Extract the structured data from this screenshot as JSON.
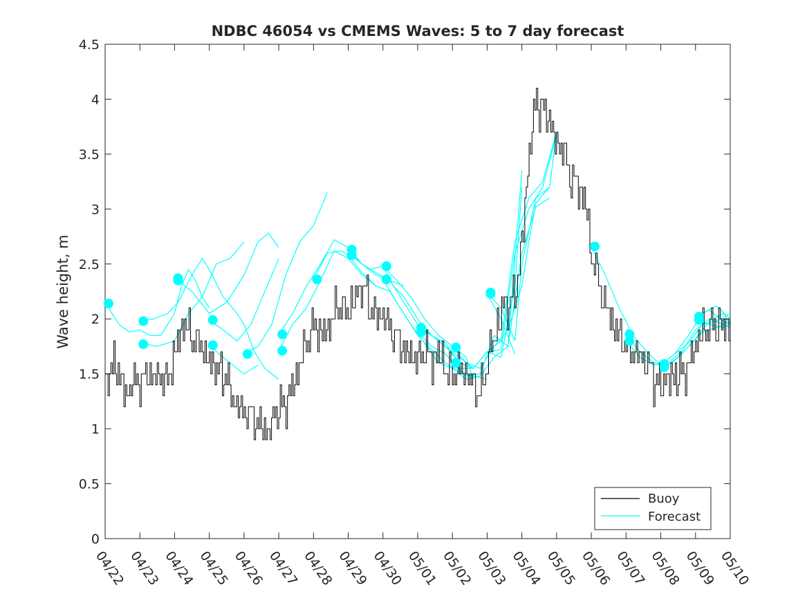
{
  "chart_data": {
    "type": "line",
    "title": "NDBC 46054 vs CMEMS Waves: 5 to 7 day forecast",
    "xlabel": "",
    "ylabel": "Wave height, m",
    "x_ticks": [
      "04/22",
      "04/23",
      "04/24",
      "04/25",
      "04/26",
      "04/27",
      "04/28",
      "04/29",
      "04/30",
      "05/01",
      "05/02",
      "05/03",
      "05/04",
      "05/05",
      "05/06",
      "05/07",
      "05/08",
      "05/09",
      "05/10"
    ],
    "xlim_days": [
      0,
      18
    ],
    "ylim": [
      0,
      4.5
    ],
    "y_ticks": [
      "0",
      "0.5",
      "1",
      "1.5",
      "2",
      "2.5",
      "3",
      "3.5",
      "4",
      "4.5"
    ],
    "grid": false,
    "legend": {
      "position": "bottom-right",
      "entries": [
        "Buoy",
        "Forecast"
      ]
    },
    "colors": {
      "buoy": "#000000",
      "forecast": "#00FFFF",
      "axis": "#262626"
    },
    "x_units": "days since 04/22",
    "buoy_anchors": [
      [
        0,
        1.45
      ],
      [
        0.15,
        1.5
      ],
      [
        0.3,
        1.6
      ],
      [
        0.5,
        1.4
      ],
      [
        0.6,
        1.25
      ],
      [
        0.8,
        1.45
      ],
      [
        1.0,
        1.4
      ],
      [
        1.2,
        1.5
      ],
      [
        1.4,
        1.45
      ],
      [
        1.6,
        1.45
      ],
      [
        1.8,
        1.45
      ],
      [
        2.0,
        1.7
      ],
      [
        2.2,
        1.95
      ],
      [
        2.4,
        1.9
      ],
      [
        2.6,
        1.8
      ],
      [
        2.8,
        1.75
      ],
      [
        2.9,
        1.65
      ],
      [
        3.0,
        1.6
      ],
      [
        3.3,
        1.5
      ],
      [
        3.5,
        1.45
      ],
      [
        3.6,
        1.3
      ],
      [
        3.8,
        1.2
      ],
      [
        4.0,
        1.15
      ],
      [
        4.3,
        1.1
      ],
      [
        4.5,
        1.02
      ],
      [
        4.6,
        1.0
      ],
      [
        4.7,
        0.95
      ],
      [
        4.8,
        1.05
      ],
      [
        5.0,
        1.2
      ],
      [
        5.2,
        1.25
      ],
      [
        5.4,
        1.35
      ],
      [
        5.6,
        1.6
      ],
      [
        5.8,
        1.8
      ],
      [
        6.0,
        1.95
      ],
      [
        6.2,
        1.85
      ],
      [
        6.4,
        1.9
      ],
      [
        6.6,
        2.05
      ],
      [
        6.8,
        2.1
      ],
      [
        7.0,
        2.05
      ],
      [
        7.2,
        2.2
      ],
      [
        7.4,
        2.3
      ],
      [
        7.6,
        2.15
      ],
      [
        7.8,
        2.05
      ],
      [
        8.0,
        2.0
      ],
      [
        8.2,
        1.95
      ],
      [
        8.4,
        1.8
      ],
      [
        8.6,
        1.7
      ],
      [
        8.8,
        1.65
      ],
      [
        9.0,
        1.6
      ],
      [
        9.2,
        1.75
      ],
      [
        9.4,
        1.6
      ],
      [
        9.6,
        1.7
      ],
      [
        9.8,
        1.55
      ],
      [
        10.0,
        1.5
      ],
      [
        10.2,
        1.55
      ],
      [
        10.4,
        1.5
      ],
      [
        10.6,
        1.4
      ],
      [
        10.8,
        1.32
      ],
      [
        11.0,
        1.6
      ],
      [
        11.2,
        1.85
      ],
      [
        11.4,
        2.05
      ],
      [
        11.6,
        2.15
      ],
      [
        11.8,
        2.2
      ],
      [
        12.0,
        2.7
      ],
      [
        12.2,
        3.5
      ],
      [
        12.4,
        4.0
      ],
      [
        12.6,
        3.9
      ],
      [
        12.8,
        3.8
      ],
      [
        13.0,
        3.6
      ],
      [
        13.2,
        3.5
      ],
      [
        13.4,
        3.3
      ],
      [
        13.6,
        3.2
      ],
      [
        13.8,
        3.1
      ],
      [
        14.0,
        2.6
      ],
      [
        14.2,
        2.35
      ],
      [
        14.4,
        2.1
      ],
      [
        14.6,
        1.95
      ],
      [
        14.8,
        1.85
      ],
      [
        15.0,
        1.75
      ],
      [
        15.2,
        1.72
      ],
      [
        15.4,
        1.65
      ],
      [
        15.6,
        1.6
      ],
      [
        15.8,
        1.45
      ],
      [
        16.0,
        1.4
      ],
      [
        16.2,
        1.45
      ],
      [
        16.4,
        1.5
      ],
      [
        16.6,
        1.5
      ],
      [
        16.8,
        1.6
      ],
      [
        17.0,
        1.75
      ],
      [
        17.2,
        1.9
      ],
      [
        17.4,
        1.95
      ],
      [
        17.6,
        1.92
      ],
      [
        17.8,
        1.95
      ],
      [
        18.0,
        1.98
      ]
    ],
    "forecast_series": [
      [
        [
          0,
          2.15
        ],
        [
          0.4,
          1.95
        ],
        [
          0.7,
          1.88
        ],
        [
          1.0,
          1.9
        ],
        [
          1.3,
          1.85
        ],
        [
          1.6,
          1.85
        ],
        [
          2.0,
          2.05
        ],
        [
          2.2,
          2.3
        ],
        [
          2.4,
          2.45
        ],
        [
          2.6,
          2.35
        ],
        [
          2.8,
          2.2
        ],
        [
          3.0,
          2.1
        ]
      ],
      [
        [
          1.0,
          1.98
        ],
        [
          1.4,
          2.0
        ],
        [
          1.8,
          2.05
        ],
        [
          2.1,
          2.15
        ],
        [
          2.5,
          2.4
        ],
        [
          2.8,
          2.55
        ],
        [
          3.0,
          2.45
        ],
        [
          3.4,
          2.2
        ],
        [
          3.8,
          2.05
        ],
        [
          4.0,
          1.95
        ],
        [
          4.3,
          1.7
        ],
        [
          4.6,
          1.55
        ],
        [
          5.0,
          1.45
        ]
      ],
      [
        [
          1.0,
          1.78
        ],
        [
          1.5,
          1.75
        ],
        [
          2.0,
          1.8
        ],
        [
          2.4,
          2.05
        ],
        [
          2.8,
          2.2
        ],
        [
          3.2,
          2.5
        ],
        [
          3.6,
          2.55
        ],
        [
          4.0,
          2.7
        ]
      ],
      [
        [
          2.0,
          2.37
        ],
        [
          2.5,
          2.25
        ],
        [
          3.0,
          2.05
        ],
        [
          3.5,
          2.15
        ],
        [
          4.0,
          2.4
        ],
        [
          4.4,
          2.7
        ],
        [
          4.7,
          2.78
        ],
        [
          5.0,
          2.65
        ]
      ],
      [
        [
          3.0,
          1.99
        ],
        [
          3.4,
          1.9
        ],
        [
          3.8,
          1.8
        ],
        [
          4.2,
          1.95
        ],
        [
          4.6,
          2.25
        ],
        [
          5.0,
          2.55
        ]
      ],
      [
        [
          3.0,
          1.76
        ],
        [
          3.4,
          1.65
        ],
        [
          3.8,
          1.55
        ],
        [
          4.0,
          1.5
        ],
        [
          4.4,
          1.58
        ]
      ],
      [
        [
          4.0,
          1.68
        ],
        [
          4.4,
          1.75
        ],
        [
          4.8,
          1.95
        ],
        [
          5.2,
          2.4
        ],
        [
          5.6,
          2.7
        ],
        [
          6.0,
          2.85
        ],
        [
          6.4,
          3.15
        ]
      ],
      [
        [
          5.0,
          1.86
        ],
        [
          5.4,
          2.05
        ],
        [
          5.8,
          2.3
        ],
        [
          6.2,
          2.5
        ],
        [
          6.6,
          2.72
        ],
        [
          7.0,
          2.65
        ],
        [
          7.4,
          2.5
        ],
        [
          7.8,
          2.42
        ],
        [
          8.2,
          2.35
        ],
        [
          8.6,
          2.3
        ]
      ],
      [
        [
          5.0,
          1.71
        ],
        [
          5.4,
          1.95
        ],
        [
          5.8,
          2.1
        ],
        [
          6.2,
          2.35
        ],
        [
          6.6,
          2.62
        ],
        [
          7.0,
          2.55
        ],
        [
          7.4,
          2.4
        ],
        [
          7.8,
          2.3
        ]
      ],
      [
        [
          6.0,
          2.36
        ],
        [
          6.4,
          2.6
        ],
        [
          6.8,
          2.62
        ],
        [
          7.2,
          2.55
        ],
        [
          7.6,
          2.45
        ],
        [
          8.0,
          2.48
        ],
        [
          8.4,
          2.35
        ],
        [
          8.8,
          2.2
        ],
        [
          9.2,
          2.0
        ],
        [
          9.6,
          1.85
        ],
        [
          10.0,
          1.75
        ],
        [
          10.4,
          1.65
        ],
        [
          10.6,
          1.45
        ]
      ],
      [
        [
          7.0,
          2.63
        ],
        [
          7.4,
          2.5
        ],
        [
          7.8,
          2.4
        ],
        [
          8.2,
          2.35
        ],
        [
          8.6,
          2.15
        ],
        [
          9.0,
          1.95
        ],
        [
          9.4,
          1.85
        ],
        [
          9.8,
          1.75
        ],
        [
          10.2,
          1.6
        ]
      ],
      [
        [
          7.0,
          2.58
        ],
        [
          7.4,
          2.42
        ],
        [
          7.8,
          2.3
        ],
        [
          8.2,
          2.25
        ],
        [
          8.6,
          2.05
        ],
        [
          9.0,
          1.85
        ],
        [
          9.4,
          1.72
        ],
        [
          9.8,
          1.6
        ],
        [
          10.2,
          1.52
        ],
        [
          10.6,
          1.48
        ],
        [
          11.0,
          1.45
        ]
      ],
      [
        [
          8.0,
          2.48
        ],
        [
          8.3,
          2.3
        ],
        [
          8.6,
          2.2
        ],
        [
          9.0,
          2.0
        ],
        [
          9.4,
          1.85
        ],
        [
          9.8,
          1.75
        ],
        [
          10.2,
          1.65
        ],
        [
          10.6,
          1.55
        ],
        [
          11.0,
          1.7
        ],
        [
          11.4,
          1.65
        ],
        [
          11.8,
          2.3
        ],
        [
          12.0,
          3.2
        ]
      ],
      [
        [
          8.0,
          2.36
        ],
        [
          8.4,
          2.15
        ],
        [
          8.8,
          1.95
        ],
        [
          9.2,
          1.78
        ],
        [
          9.6,
          1.6
        ],
        [
          10.0,
          1.55
        ],
        [
          10.4,
          1.45
        ],
        [
          10.8,
          1.48
        ],
        [
          11.2,
          1.65
        ],
        [
          11.6,
          1.75
        ],
        [
          12.0,
          3.35
        ]
      ],
      [
        [
          9.0,
          1.92
        ],
        [
          9.4,
          1.85
        ],
        [
          9.8,
          1.78
        ],
        [
          10.2,
          1.6
        ],
        [
          10.6,
          1.55
        ],
        [
          11.0,
          1.7
        ],
        [
          11.4,
          1.8
        ],
        [
          11.8,
          2.7
        ],
        [
          12.2,
          3.1
        ],
        [
          12.6,
          3.25
        ],
        [
          13.0,
          3.7
        ]
      ],
      [
        [
          9.0,
          1.88
        ],
        [
          9.4,
          1.75
        ],
        [
          9.8,
          1.68
        ],
        [
          10.2,
          1.55
        ],
        [
          10.6,
          1.55
        ],
        [
          11.0,
          1.7
        ],
        [
          11.4,
          1.72
        ],
        [
          11.8,
          2.6
        ],
        [
          12.2,
          3.0
        ],
        [
          12.6,
          3.2
        ],
        [
          13.0,
          3.68
        ]
      ],
      [
        [
          10.0,
          1.74
        ],
        [
          10.4,
          1.6
        ],
        [
          10.8,
          1.55
        ],
        [
          11.2,
          1.75
        ],
        [
          11.6,
          1.9
        ],
        [
          12.0,
          2.3
        ],
        [
          12.2,
          2.7
        ],
        [
          12.4,
          3.05
        ],
        [
          12.8,
          3.2
        ]
      ],
      [
        [
          10.0,
          1.6
        ],
        [
          10.4,
          1.48
        ],
        [
          10.8,
          1.5
        ],
        [
          11.2,
          1.85
        ],
        [
          11.6,
          1.75
        ],
        [
          12.0,
          2.6
        ],
        [
          12.4,
          3.02
        ],
        [
          12.8,
          3.1
        ]
      ],
      [
        [
          11.0,
          2.24
        ],
        [
          11.4,
          2.1
        ],
        [
          11.8,
          1.8
        ],
        [
          12.0,
          2.5
        ],
        [
          12.4,
          3.1
        ],
        [
          12.8,
          3.2
        ],
        [
          13.0,
          3.7
        ]
      ],
      [
        [
          11.0,
          2.23
        ],
        [
          11.4,
          2.0
        ],
        [
          11.8,
          1.68
        ]
      ],
      [
        [
          14.0,
          2.66
        ],
        [
          14.4,
          2.4
        ],
        [
          14.8,
          2.1
        ],
        [
          15.2,
          1.85
        ],
        [
          15.6,
          1.7
        ],
        [
          16.0,
          1.58
        ],
        [
          16.4,
          1.68
        ],
        [
          16.8,
          1.85
        ],
        [
          17.2,
          2.05
        ],
        [
          17.6,
          2.12
        ],
        [
          18.0,
          2.0
        ]
      ],
      [
        [
          15.0,
          1.86
        ],
        [
          15.4,
          1.7
        ],
        [
          15.8,
          1.6
        ],
        [
          16.2,
          1.58
        ],
        [
          16.6,
          1.68
        ],
        [
          17.0,
          1.82
        ],
        [
          17.4,
          1.98
        ],
        [
          17.8,
          2.05
        ],
        [
          18.0,
          1.95
        ]
      ],
      [
        [
          15.0,
          1.8
        ],
        [
          15.4,
          1.65
        ],
        [
          15.8,
          1.58
        ],
        [
          16.2,
          1.6
        ],
        [
          16.6,
          1.7
        ],
        [
          17.0,
          1.9
        ],
        [
          17.4,
          2.0
        ],
        [
          17.8,
          1.95
        ],
        [
          18.0,
          1.92
        ]
      ],
      [
        [
          16.0,
          1.58
        ],
        [
          16.4,
          1.68
        ],
        [
          16.8,
          1.78
        ],
        [
          17.2,
          1.95
        ],
        [
          17.6,
          1.98
        ],
        [
          18.0,
          2.05
        ]
      ],
      [
        [
          16.0,
          1.55
        ],
        [
          16.4,
          1.62
        ],
        [
          16.8,
          1.75
        ],
        [
          17.2,
          1.88
        ],
        [
          17.6,
          1.92
        ],
        [
          18.0,
          1.98
        ]
      ],
      [
        [
          17.0,
          2.02
        ],
        [
          17.4,
          2.08
        ],
        [
          17.8,
          1.98
        ],
        [
          18.0,
          1.95
        ]
      ],
      [
        [
          17.0,
          1.99
        ],
        [
          17.4,
          1.95
        ],
        [
          17.8,
          1.92
        ],
        [
          18.0,
          1.96
        ]
      ]
    ],
    "forecast_markers": [
      [
        0.1,
        2.14
      ],
      [
        1.1,
        1.98
      ],
      [
        1.1,
        1.77
      ],
      [
        2.1,
        2.37
      ],
      [
        2.1,
        2.35
      ],
      [
        3.1,
        1.99
      ],
      [
        3.1,
        1.76
      ],
      [
        4.1,
        1.68
      ],
      [
        5.1,
        1.86
      ],
      [
        5.1,
        1.71
      ],
      [
        6.1,
        2.36
      ],
      [
        7.1,
        2.63
      ],
      [
        7.1,
        2.58
      ],
      [
        8.1,
        2.48
      ],
      [
        8.1,
        2.36
      ],
      [
        9.1,
        1.92
      ],
      [
        9.1,
        1.88
      ],
      [
        10.1,
        1.74
      ],
      [
        10.1,
        1.6
      ],
      [
        11.1,
        2.24
      ],
      [
        11.1,
        2.23
      ],
      [
        14.1,
        2.66
      ],
      [
        15.1,
        1.86
      ],
      [
        15.1,
        1.8
      ],
      [
        16.1,
        1.59
      ],
      [
        16.1,
        1.56
      ],
      [
        17.1,
        2.02
      ],
      [
        17.1,
        1.99
      ]
    ]
  }
}
